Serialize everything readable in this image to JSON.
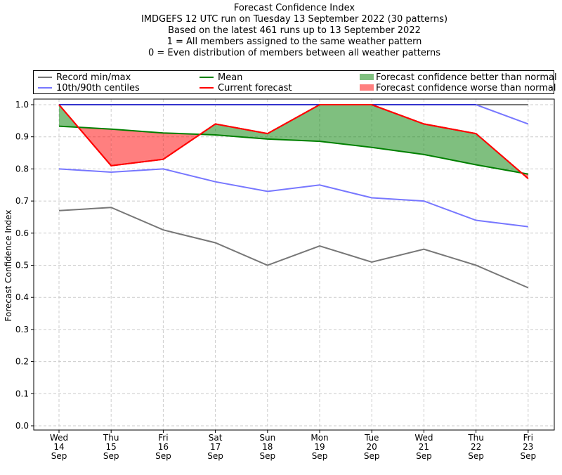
{
  "chart_data": {
    "type": "line",
    "title": "Forecast Confidence Index",
    "subtitle_lines": [
      "IMDGEFS 12 UTC run on Tuesday 13 September 2022 (30 patterns)",
      "Based on the latest 461 runs up to 13 September 2022",
      "1 = All members assigned to the same weather pattern",
      "0 = Even distribution of members between all weather patterns"
    ],
    "xlabel": "",
    "ylabel": "Forecast Confidence Index",
    "ylim": [
      0.0,
      1.0
    ],
    "yticks": [
      "0.0",
      "0.1",
      "0.2",
      "0.3",
      "0.4",
      "0.5",
      "0.6",
      "0.7",
      "0.8",
      "0.9",
      "1.0"
    ],
    "grid": true,
    "legend_position": "top, above plot (3 columns)",
    "categories": [
      [
        "Wed",
        "14",
        "Sep"
      ],
      [
        "Thu",
        "15",
        "Sep"
      ],
      [
        "Fri",
        "16",
        "Sep"
      ],
      [
        "Sat",
        "17",
        "Sep"
      ],
      [
        "Sun",
        "18",
        "Sep"
      ],
      [
        "Mon",
        "19",
        "Sep"
      ],
      [
        "Tue",
        "20",
        "Sep"
      ],
      [
        "Wed",
        "21",
        "Sep"
      ],
      [
        "Thu",
        "22",
        "Sep"
      ],
      [
        "Fri",
        "23",
        "Sep"
      ]
    ],
    "series": [
      {
        "name": "Record min",
        "legend": "Record min/max",
        "color": "#777777",
        "values": [
          0.67,
          0.68,
          0.61,
          0.57,
          0.5,
          0.56,
          0.51,
          0.55,
          0.5,
          0.43
        ]
      },
      {
        "name": "Record max",
        "legend": "Record min/max",
        "color": "#777777",
        "values": [
          1.0,
          1.0,
          1.0,
          1.0,
          1.0,
          1.0,
          1.0,
          1.0,
          1.0,
          1.0
        ]
      },
      {
        "name": "10th centile",
        "legend": "10th/90th centiles",
        "color": "#7777ff",
        "values": [
          0.8,
          0.79,
          0.8,
          0.76,
          0.73,
          0.75,
          0.71,
          0.7,
          0.64,
          0.62
        ]
      },
      {
        "name": "90th centile",
        "legend": "10th/90th centiles",
        "color": "#7777ff",
        "values": [
          1.0,
          1.0,
          1.0,
          1.0,
          1.0,
          1.0,
          1.0,
          1.0,
          1.0,
          0.94
        ]
      },
      {
        "name": "Mean",
        "legend": "Mean",
        "color": "#008000",
        "values": [
          0.933,
          0.924,
          0.912,
          0.906,
          0.893,
          0.886,
          0.867,
          0.845,
          0.813,
          0.784
        ]
      },
      {
        "name": "Current forecast",
        "legend": "Current forecast",
        "color": "#ff0000",
        "values": [
          1.0,
          0.81,
          0.83,
          0.94,
          0.91,
          1.0,
          1.0,
          0.94,
          0.91,
          0.77
        ]
      }
    ],
    "fills": [
      {
        "name": "Forecast confidence better than normal",
        "color": "#008000",
        "opacity": 0.5,
        "between": [
          "Current forecast",
          "Mean"
        ],
        "where": "forecast >= mean"
      },
      {
        "name": "Forecast confidence worse than normal",
        "color": "#ff0000",
        "opacity": 0.5,
        "between": [
          "Current forecast",
          "Mean"
        ],
        "where": "forecast < mean"
      }
    ]
  },
  "legend": {
    "items": [
      {
        "label": "Record min/max",
        "type": "line",
        "color": "#777777"
      },
      {
        "label": "10th/90th centiles",
        "type": "line",
        "color": "#7777ff"
      },
      {
        "label": "Mean",
        "type": "line",
        "color": "#008000"
      },
      {
        "label": "Current forecast",
        "type": "line",
        "color": "#ff0000"
      },
      {
        "label": "Forecast confidence better than normal",
        "type": "patch",
        "color": "#80c080"
      },
      {
        "label": "Forecast confidence worse than normal",
        "type": "patch",
        "color": "#ff8080"
      }
    ]
  }
}
